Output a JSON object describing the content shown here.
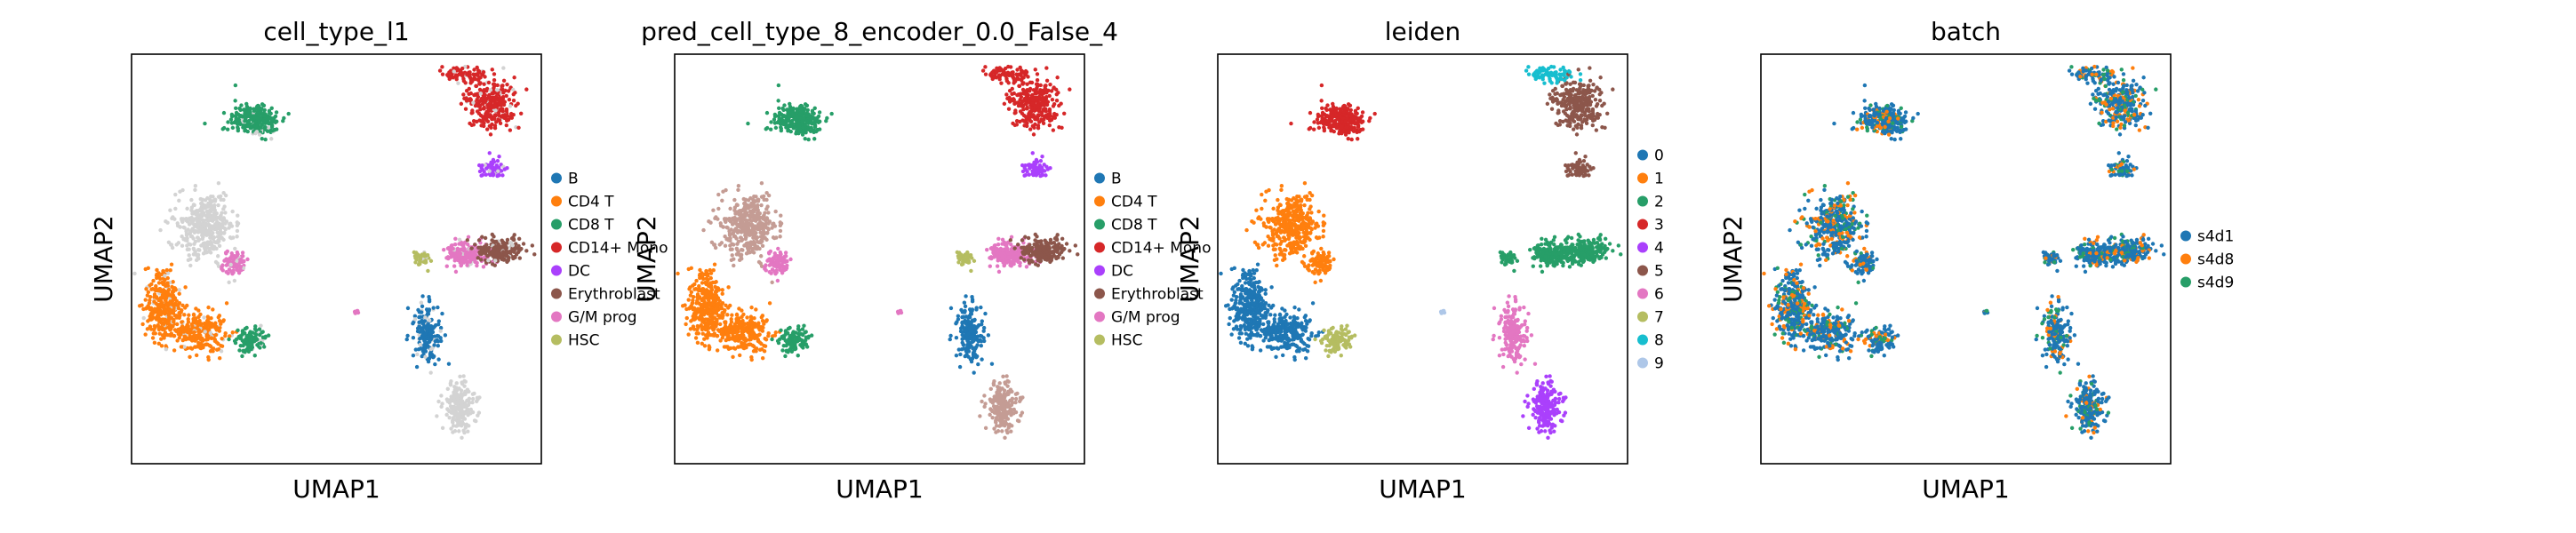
{
  "chart_data": [
    {
      "type": "scatter",
      "title": "cell_type_l1",
      "xlabel": "UMAP1",
      "ylabel": "UMAP2",
      "grid": false,
      "legend": {
        "placement": "right",
        "entries": [
          {
            "label": "B",
            "color": "#1f77b4"
          },
          {
            "label": "CD4 T",
            "color": "#ff7f0e"
          },
          {
            "label": "CD8 T",
            "color": "#279e68"
          },
          {
            "label": "CD14+ Mono",
            "color": "#d62728"
          },
          {
            "label": "DC",
            "color": "#aa40fc"
          },
          {
            "label": "Erythroblast",
            "color": "#8c564b"
          },
          {
            "label": "G/M prog",
            "color": "#e377c2"
          },
          {
            "label": "HSC",
            "color": "#b5bd61"
          }
        ]
      }
    },
    {
      "type": "scatter",
      "title": "pred_cell_type_8_encoder_0.0_False_4",
      "xlabel": "UMAP1",
      "ylabel": "UMAP2",
      "grid": false,
      "legend": {
        "placement": "right",
        "entries": [
          {
            "label": "B",
            "color": "#1f77b4"
          },
          {
            "label": "CD4 T",
            "color": "#ff7f0e"
          },
          {
            "label": "CD8 T",
            "color": "#279e68"
          },
          {
            "label": "CD14+ Mono",
            "color": "#d62728"
          },
          {
            "label": "DC",
            "color": "#aa40fc"
          },
          {
            "label": "Erythroblast",
            "color": "#8c564b"
          },
          {
            "label": "G/M prog",
            "color": "#e377c2"
          },
          {
            "label": "HSC",
            "color": "#b5bd61"
          }
        ]
      }
    },
    {
      "type": "scatter",
      "title": "leiden",
      "xlabel": "UMAP1",
      "ylabel": "UMAP2",
      "grid": false,
      "legend": {
        "placement": "right",
        "entries": [
          {
            "label": "0",
            "color": "#1f77b4"
          },
          {
            "label": "1",
            "color": "#ff7f0e"
          },
          {
            "label": "2",
            "color": "#279e68"
          },
          {
            "label": "3",
            "color": "#d62728"
          },
          {
            "label": "4",
            "color": "#aa40fc"
          },
          {
            "label": "5",
            "color": "#8c564b"
          },
          {
            "label": "6",
            "color": "#e377c2"
          },
          {
            "label": "7",
            "color": "#b5bd61"
          },
          {
            "label": "8",
            "color": "#17becf"
          },
          {
            "label": "9",
            "color": "#aec7e8"
          }
        ]
      }
    },
    {
      "type": "scatter",
      "title": "batch",
      "xlabel": "UMAP1",
      "ylabel": "UMAP2",
      "grid": false,
      "legend": {
        "placement": "right",
        "entries": [
          {
            "label": "s4d1",
            "color": "#1f77b4"
          },
          {
            "label": "s4d8",
            "color": "#ff7f0e"
          },
          {
            "label": "s4d9",
            "color": "#279e68"
          }
        ]
      }
    }
  ]
}
